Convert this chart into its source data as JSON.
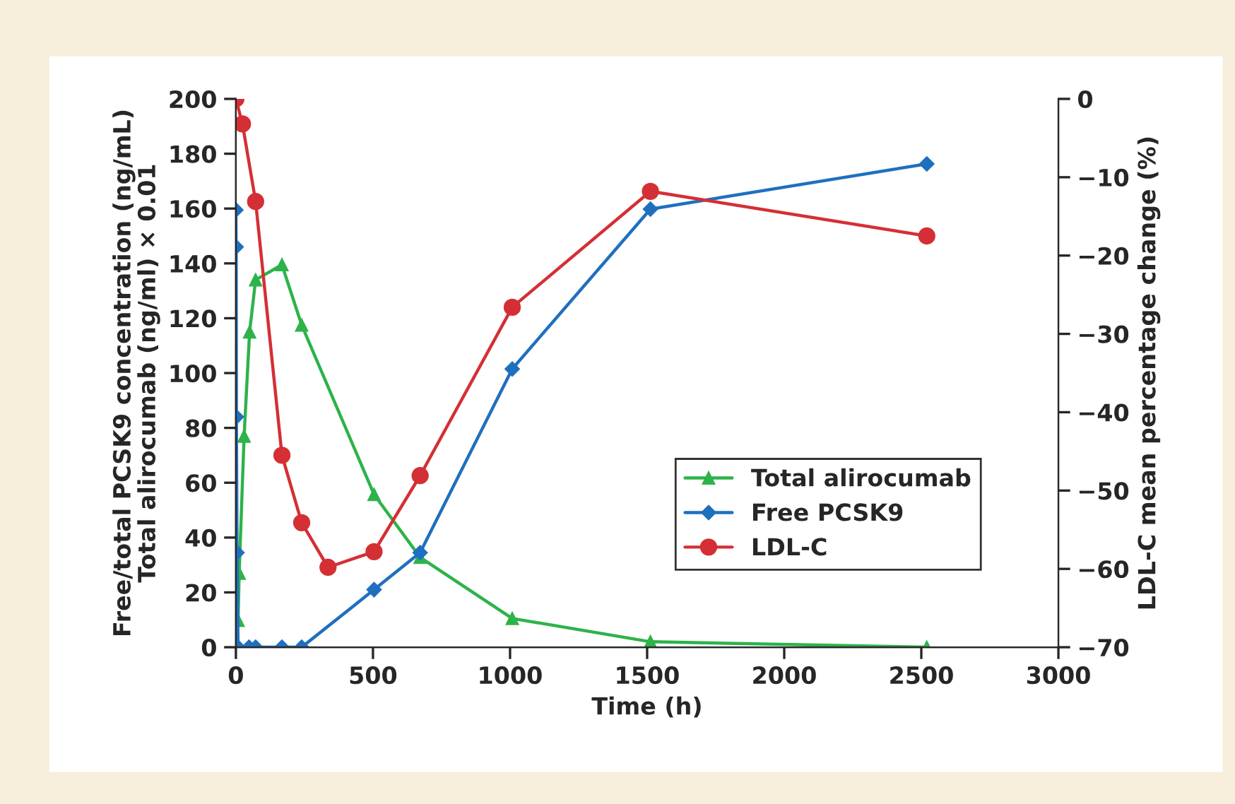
{
  "chart_data": {
    "type": "line",
    "xlabel": "Time (h)",
    "ylabel": "Free/total PCSK9 concentration (ng/mL)\nTotal alirocumab (ng/ml) × 0.01",
    "y2label": "LDL-C mean percentage change (%)",
    "xlim": [
      0,
      3000
    ],
    "xticks": [
      0,
      500,
      1000,
      1500,
      2000,
      2500,
      3000
    ],
    "ylim": [
      0,
      200
    ],
    "yticks": [
      0,
      20,
      40,
      60,
      80,
      100,
      120,
      140,
      160,
      180,
      200
    ],
    "y2lim": [
      -70,
      0
    ],
    "y2ticks": [
      -70,
      -60,
      -50,
      -40,
      -30,
      -20,
      -10,
      0
    ],
    "grid": false,
    "legend": "lower right",
    "line_style": "solid",
    "series": [
      {
        "name": "Total alirocumab",
        "color": "#2db34a",
        "marker": "triangle",
        "x": [
          0,
          4,
          8,
          12,
          30,
          50,
          72,
          168,
          240,
          504,
          672,
          1008,
          1512,
          2520
        ],
        "values": [
          0,
          null,
          9.8,
          27,
          77,
          115,
          134,
          139.5,
          117.5,
          55.7,
          32.8,
          10.5,
          2,
          0
        ]
      },
      {
        "name": "Free PCSK9",
        "color": "#1f6fbf",
        "marker": "diamond",
        "x": [
          0,
          1,
          2,
          4,
          8,
          48,
          72,
          168,
          240,
          504,
          672,
          1008,
          1512,
          2520
        ],
        "values": [
          159.5,
          146,
          84,
          34.5,
          0,
          0,
          0,
          0,
          0,
          21,
          34.5,
          101.5,
          159.8,
          176.3
        ]
      },
      {
        "name": "LDL-C",
        "color": "#d42f35",
        "marker": "circle",
        "axis": "y2",
        "x": [
          0,
          24,
          72,
          168,
          240,
          336,
          504,
          672,
          1008,
          1512,
          2520
        ],
        "values": [
          0,
          -3.2,
          -13.1,
          -45.5,
          -54.1,
          -59.8,
          -57.8,
          -48.1,
          -26.6,
          -11.8,
          -17.5
        ]
      }
    ]
  }
}
